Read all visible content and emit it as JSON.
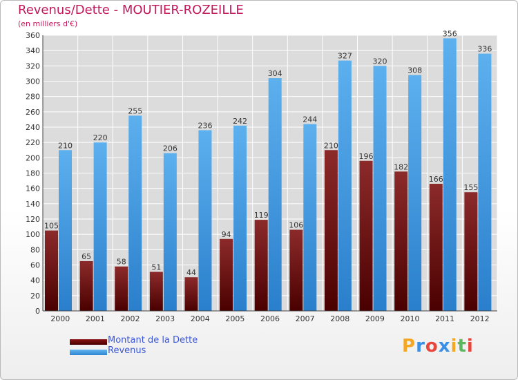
{
  "chart_data": {
    "type": "bar",
    "title": "Revenus/Dette - MOUTIER-ROZEILLE",
    "subtitle": "(en milliers d'€)",
    "categories": [
      "2000",
      "2001",
      "2002",
      "2003",
      "2004",
      "2005",
      "2006",
      "2007",
      "2008",
      "2009",
      "2010",
      "2011",
      "2012"
    ],
    "series": [
      {
        "name": "Montant de la Dette",
        "color": "#7a0f0f",
        "values": [
          105,
          65,
          58,
          51,
          44,
          94,
          119,
          106,
          210,
          196,
          182,
          166,
          155
        ]
      },
      {
        "name": "Revenus",
        "color": "#4aa3e8",
        "values": [
          210,
          220,
          255,
          206,
          236,
          242,
          304,
          244,
          327,
          320,
          308,
          356,
          336
        ]
      }
    ],
    "ylim": [
      0,
      360
    ],
    "ytick_step": 20,
    "grid": true,
    "legend_position": "bottom-left"
  },
  "logo": {
    "text": "Proxiti",
    "colors": [
      "#f5a623",
      "#3a8ee6",
      "#e8453c",
      "#3a8ee6",
      "#f5a623",
      "#5cb85c",
      "#e8453c"
    ]
  }
}
